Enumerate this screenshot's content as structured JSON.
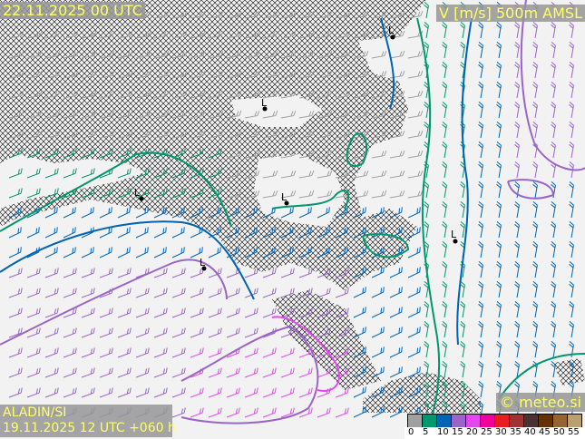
{
  "header": {
    "valid_time": "22.11.2025 00 UTC",
    "field_title": "V [m/s] 500m AMSL"
  },
  "footer": {
    "model": "ALADIN/SI",
    "run_info": "19.11.2025 12 UTC +060 h",
    "copyright": "© meteo.si"
  },
  "map": {
    "pressure_labels": [
      "L",
      "L",
      "L",
      "L",
      "L",
      "L"
    ],
    "land_color": "#f2f2f2",
    "sea_hatch_color": "#000000"
  },
  "legend": {
    "unit": "m/s",
    "ticks": [
      "0",
      "5",
      "10",
      "15",
      "20",
      "25",
      "30",
      "35",
      "40",
      "45",
      "50",
      "55"
    ],
    "colors": [
      "#a0a0a0",
      "#00966e",
      "#0064b4",
      "#9a64c8",
      "#e446f0",
      "#f0009a",
      "#e61e1e",
      "#a03232",
      "#4a3232",
      "#643200",
      "#966432",
      "#b9a06e"
    ]
  }
}
